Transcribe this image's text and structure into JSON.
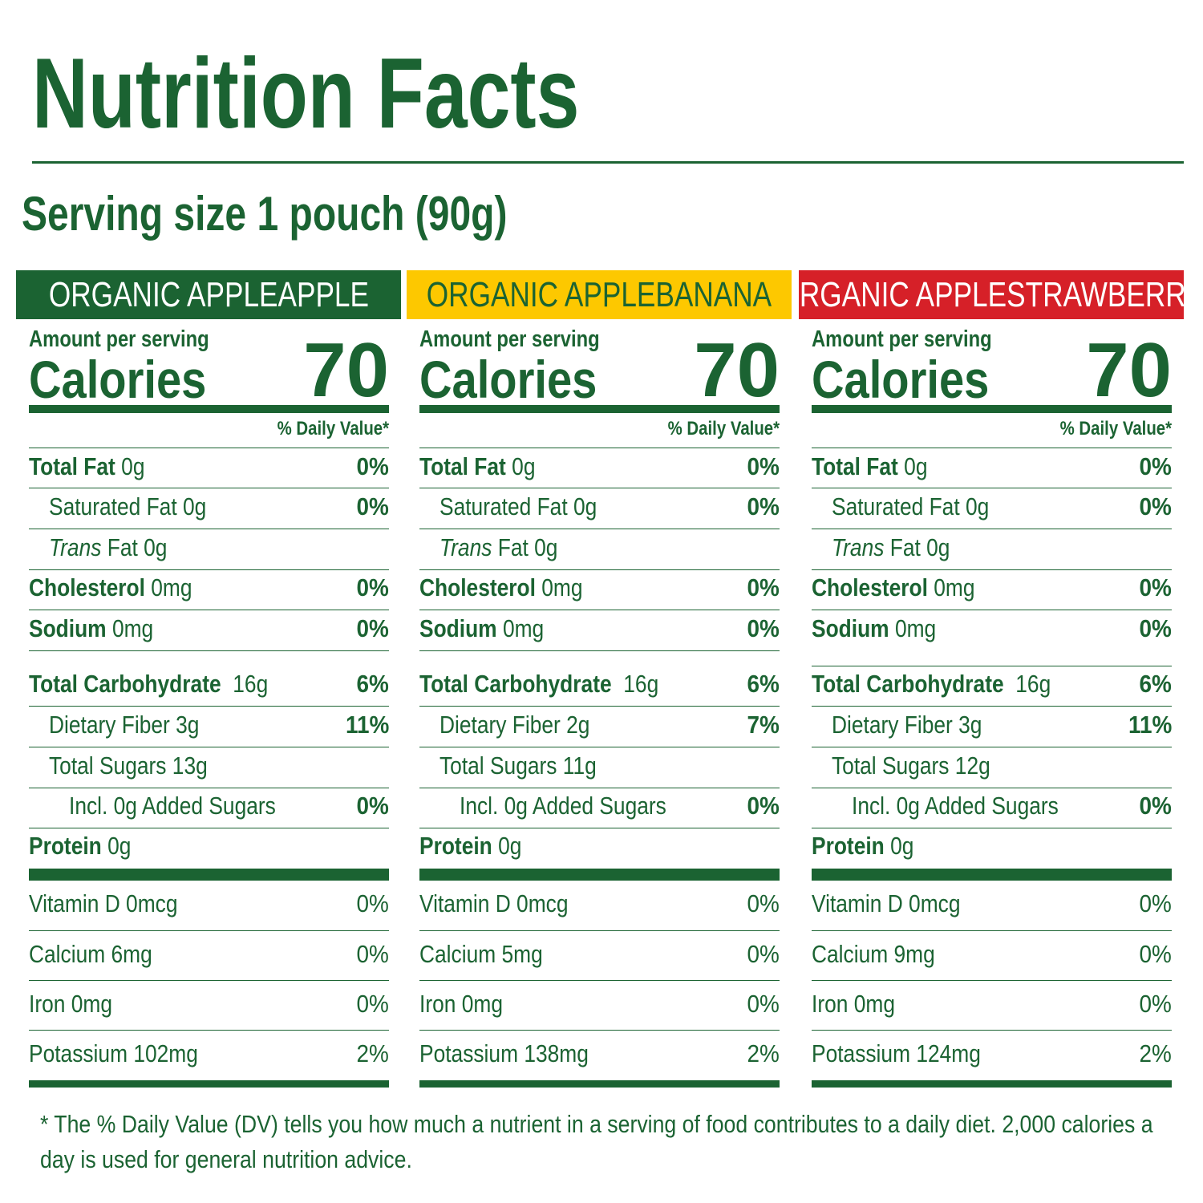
{
  "title": "Nutrition Facts",
  "serving": "Serving size 1 pouch (90g)",
  "colors": {
    "green": "#1b6332",
    "yellow": "#fdc800",
    "red": "#d62028",
    "white": "#ffffff"
  },
  "columns": [
    {
      "header": "ORGANIC APPLEAPPLE",
      "header_bg": "#1b6332",
      "header_fg": "#ffffff",
      "amount_per_serving": "Amount per serving",
      "calories_label": "Calories",
      "calories": "70",
      "dv_header": "% Daily Value*",
      "rows": [
        {
          "bold": "Total Fat",
          "text": " 0g",
          "dv": "0%"
        },
        {
          "text": "Saturated Fat 0g",
          "dv": "0%",
          "indent": 1
        },
        {
          "italic": "Trans",
          "text": " Fat 0g",
          "dv": "",
          "indent": 1
        },
        {
          "bold": "Cholesterol",
          "text": " 0mg",
          "dv": "0%"
        },
        {
          "bold": "Sodium",
          "text": " 0mg",
          "dv": "0%"
        },
        {
          "bold": "Total Carbohydrate",
          "text": "  16g",
          "dv": "6%"
        },
        {
          "text": "Dietary Fiber 3g",
          "dv": "11%",
          "indent": 1
        },
        {
          "text": "Total Sugars 13g",
          "dv": "",
          "indent": 1
        },
        {
          "text": "Incl. 0g Added Sugars",
          "dv": "0%",
          "indent": 2
        },
        {
          "bold": "Protein",
          "text": " 0g",
          "dv": ""
        }
      ],
      "vitamins": [
        {
          "text": "Vitamin D 0mcg",
          "dv": "0%"
        },
        {
          "text": "Calcium 6mg",
          "dv": "0%"
        },
        {
          "text": "Iron 0mg",
          "dv": "0%"
        },
        {
          "text": "Potassium 102mg",
          "dv": "2%"
        }
      ]
    },
    {
      "header": "ORGANIC APPLEBANANA",
      "header_bg": "#fdc800",
      "header_fg": "#1b6332",
      "amount_per_serving": "Amount per serving",
      "calories_label": "Calories",
      "calories": "70",
      "dv_header": "% Daily Value*",
      "rows": [
        {
          "bold": "Total Fat",
          "text": " 0g",
          "dv": "0%"
        },
        {
          "text": "Saturated Fat 0g",
          "dv": "0%",
          "indent": 1
        },
        {
          "italic": "Trans",
          "text": " Fat 0g",
          "dv": "",
          "indent": 1
        },
        {
          "bold": "Cholesterol",
          "text": " 0mg",
          "dv": "0%"
        },
        {
          "bold": "Sodium",
          "text": " 0mg",
          "dv": "0%"
        },
        {
          "bold": "Total Carbohydrate",
          "text": "  16g",
          "dv": "6%"
        },
        {
          "text": "Dietary Fiber 2g",
          "dv": "7%",
          "indent": 1
        },
        {
          "text": "Total Sugars 11g",
          "dv": "",
          "indent": 1
        },
        {
          "text": "Incl. 0g Added Sugars",
          "dv": "0%",
          "indent": 2
        },
        {
          "bold": "Protein",
          "text": " 0g",
          "dv": ""
        }
      ],
      "vitamins": [
        {
          "text": "Vitamin D 0mcg",
          "dv": "0%"
        },
        {
          "text": "Calcium 5mg",
          "dv": "0%"
        },
        {
          "text": "Iron 0mg",
          "dv": "0%"
        },
        {
          "text": "Potassium 138mg",
          "dv": "2%"
        }
      ]
    },
    {
      "header": "ORGANIC APPLESTRAWBERRY",
      "header_bg": "#d62028",
      "header_fg": "#ffffff",
      "amount_per_serving": "Amount per serving",
      "calories_label": "Calories",
      "calories": "70",
      "dv_header": "% Daily Value*",
      "rows": [
        {
          "bold": "Total Fat",
          "text": " 0g",
          "dv": "0%"
        },
        {
          "text": "Saturated Fat 0g",
          "dv": "0%",
          "indent": 1
        },
        {
          "italic": "Trans",
          "text": " Fat 0g",
          "dv": "",
          "indent": 1
        },
        {
          "bold": "Cholesterol",
          "text": " 0mg",
          "dv": "0%"
        },
        {
          "bold": "Sodium",
          "text": " 0mg",
          "dv": "0%"
        },
        {
          "bold": "Total Carbohydrate",
          "text": "  16g",
          "dv": "6%"
        },
        {
          "text": "Dietary Fiber 3g",
          "dv": "11%",
          "indent": 1
        },
        {
          "text": "Total Sugars 12g",
          "dv": "",
          "indent": 1
        },
        {
          "text": "Incl. 0g Added Sugars",
          "dv": "0%",
          "indent": 2
        },
        {
          "bold": "Protein",
          "text": " 0g",
          "dv": ""
        }
      ],
      "vitamins": [
        {
          "text": "Vitamin D 0mcg",
          "dv": "0%"
        },
        {
          "text": "Calcium 9mg",
          "dv": "0%"
        },
        {
          "text": "Iron 0mg",
          "dv": "0%"
        },
        {
          "text": "Potassium 124mg",
          "dv": "2%"
        }
      ]
    }
  ],
  "footnote": "* The % Daily Value (DV) tells you how much a nutrient in a serving of food contributes to a daily diet. 2,000 calories a day is used for general nutrition advice."
}
